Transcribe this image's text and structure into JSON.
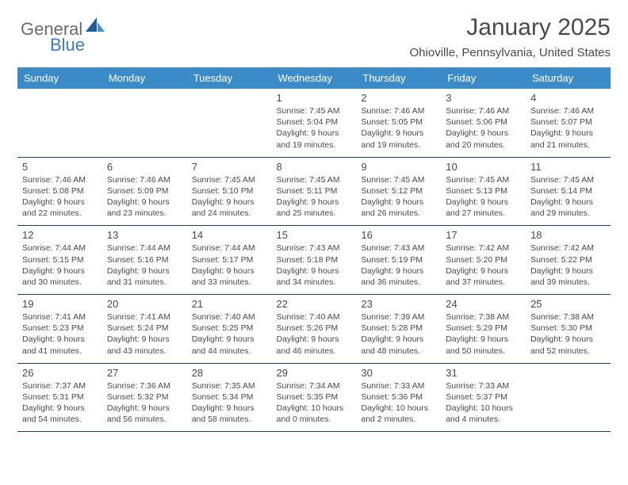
{
  "brand": {
    "part1": "General",
    "part2": "Blue"
  },
  "title": "January 2025",
  "location": "Ohioville, Pennsylvania, United States",
  "colors": {
    "header_bg": "#3b8bc8",
    "header_text": "#ffffff",
    "border": "#16426a",
    "text": "#4a4a4a",
    "brand_gray": "#6b6b6b",
    "brand_blue": "#3a7cc0",
    "sail_dark": "#1f5e9b",
    "sail_light": "#4a8fd0"
  },
  "weekdays": [
    "Sunday",
    "Monday",
    "Tuesday",
    "Wednesday",
    "Thursday",
    "Friday",
    "Saturday"
  ],
  "weeks": [
    [
      null,
      null,
      null,
      {
        "n": "1",
        "sr": "7:45 AM",
        "ss": "5:04 PM",
        "d": "9 hours and 19 minutes."
      },
      {
        "n": "2",
        "sr": "7:46 AM",
        "ss": "5:05 PM",
        "d": "9 hours and 19 minutes."
      },
      {
        "n": "3",
        "sr": "7:46 AM",
        "ss": "5:06 PM",
        "d": "9 hours and 20 minutes."
      },
      {
        "n": "4",
        "sr": "7:46 AM",
        "ss": "5:07 PM",
        "d": "9 hours and 21 minutes."
      }
    ],
    [
      {
        "n": "5",
        "sr": "7:46 AM",
        "ss": "5:08 PM",
        "d": "9 hours and 22 minutes."
      },
      {
        "n": "6",
        "sr": "7:46 AM",
        "ss": "5:09 PM",
        "d": "9 hours and 23 minutes."
      },
      {
        "n": "7",
        "sr": "7:45 AM",
        "ss": "5:10 PM",
        "d": "9 hours and 24 minutes."
      },
      {
        "n": "8",
        "sr": "7:45 AM",
        "ss": "5:11 PM",
        "d": "9 hours and 25 minutes."
      },
      {
        "n": "9",
        "sr": "7:45 AM",
        "ss": "5:12 PM",
        "d": "9 hours and 26 minutes."
      },
      {
        "n": "10",
        "sr": "7:45 AM",
        "ss": "5:13 PM",
        "d": "9 hours and 27 minutes."
      },
      {
        "n": "11",
        "sr": "7:45 AM",
        "ss": "5:14 PM",
        "d": "9 hours and 29 minutes."
      }
    ],
    [
      {
        "n": "12",
        "sr": "7:44 AM",
        "ss": "5:15 PM",
        "d": "9 hours and 30 minutes."
      },
      {
        "n": "13",
        "sr": "7:44 AM",
        "ss": "5:16 PM",
        "d": "9 hours and 31 minutes."
      },
      {
        "n": "14",
        "sr": "7:44 AM",
        "ss": "5:17 PM",
        "d": "9 hours and 33 minutes."
      },
      {
        "n": "15",
        "sr": "7:43 AM",
        "ss": "5:18 PM",
        "d": "9 hours and 34 minutes."
      },
      {
        "n": "16",
        "sr": "7:43 AM",
        "ss": "5:19 PM",
        "d": "9 hours and 36 minutes."
      },
      {
        "n": "17",
        "sr": "7:42 AM",
        "ss": "5:20 PM",
        "d": "9 hours and 37 minutes."
      },
      {
        "n": "18",
        "sr": "7:42 AM",
        "ss": "5:22 PM",
        "d": "9 hours and 39 minutes."
      }
    ],
    [
      {
        "n": "19",
        "sr": "7:41 AM",
        "ss": "5:23 PM",
        "d": "9 hours and 41 minutes."
      },
      {
        "n": "20",
        "sr": "7:41 AM",
        "ss": "5:24 PM",
        "d": "9 hours and 43 minutes."
      },
      {
        "n": "21",
        "sr": "7:40 AM",
        "ss": "5:25 PM",
        "d": "9 hours and 44 minutes."
      },
      {
        "n": "22",
        "sr": "7:40 AM",
        "ss": "5:26 PM",
        "d": "9 hours and 46 minutes."
      },
      {
        "n": "23",
        "sr": "7:39 AM",
        "ss": "5:28 PM",
        "d": "9 hours and 48 minutes."
      },
      {
        "n": "24",
        "sr": "7:38 AM",
        "ss": "5:29 PM",
        "d": "9 hours and 50 minutes."
      },
      {
        "n": "25",
        "sr": "7:38 AM",
        "ss": "5:30 PM",
        "d": "9 hours and 52 minutes."
      }
    ],
    [
      {
        "n": "26",
        "sr": "7:37 AM",
        "ss": "5:31 PM",
        "d": "9 hours and 54 minutes."
      },
      {
        "n": "27",
        "sr": "7:36 AM",
        "ss": "5:32 PM",
        "d": "9 hours and 56 minutes."
      },
      {
        "n": "28",
        "sr": "7:35 AM",
        "ss": "5:34 PM",
        "d": "9 hours and 58 minutes."
      },
      {
        "n": "29",
        "sr": "7:34 AM",
        "ss": "5:35 PM",
        "d": "10 hours and 0 minutes."
      },
      {
        "n": "30",
        "sr": "7:33 AM",
        "ss": "5:36 PM",
        "d": "10 hours and 2 minutes."
      },
      {
        "n": "31",
        "sr": "7:33 AM",
        "ss": "5:37 PM",
        "d": "10 hours and 4 minutes."
      },
      null
    ]
  ],
  "labels": {
    "sunrise": "Sunrise:",
    "sunset": "Sunset:",
    "daylight": "Daylight:"
  }
}
